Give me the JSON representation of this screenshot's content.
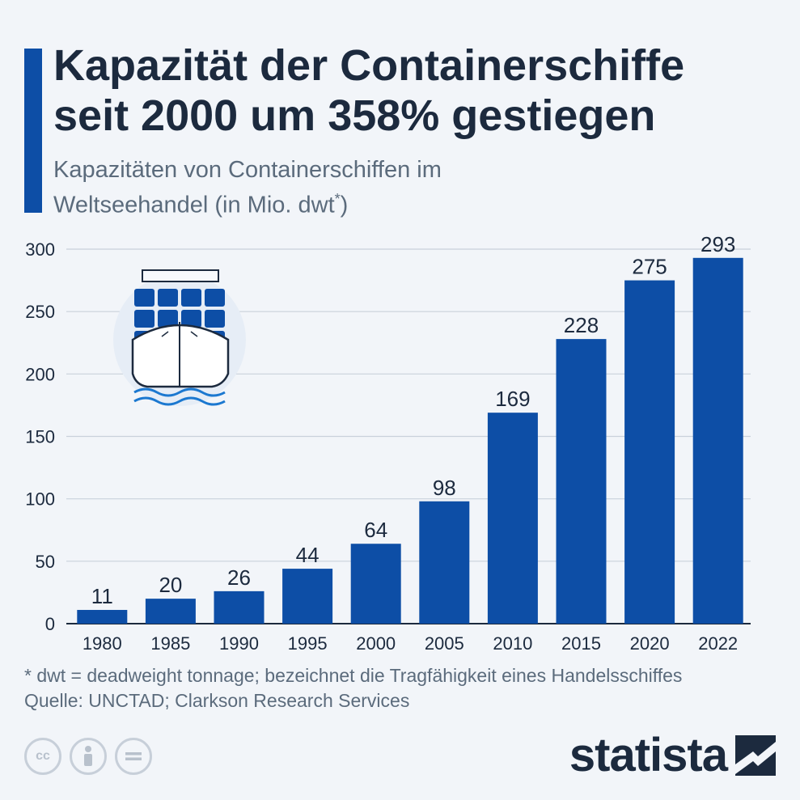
{
  "header": {
    "title_line1": "Kapazität der Containerschiffe",
    "title_line2": "seit 2000 um 358% gestiegen",
    "subtitle_line1": "Kapazitäten von Containerschiffen im",
    "subtitle_line2": "Weltseehandel (in Mio. dwt",
    "subtitle_sup": "*",
    "subtitle_end": ")"
  },
  "chart_data": {
    "type": "bar",
    "categories": [
      "1980",
      "1985",
      "1990",
      "1995",
      "2000",
      "2005",
      "2010",
      "2015",
      "2020",
      "2022"
    ],
    "values": [
      11,
      20,
      26,
      44,
      64,
      98,
      169,
      228,
      275,
      293
    ],
    "ylim": [
      0,
      300
    ],
    "yticks": [
      0,
      50,
      100,
      150,
      200,
      250,
      300
    ],
    "grid": true,
    "bar_color": "#0d4ea6"
  },
  "footer": {
    "note": "* dwt = deadweight tonnage; bezeichnet die Tragfähigkeit eines Handelsschiffes",
    "source": "Quelle: UNCTAD; Clarkson Research Services",
    "brand": "statista",
    "license_icons": [
      "cc-icon",
      "by-icon",
      "nd-icon"
    ]
  },
  "colors": {
    "accent": "#0d4ea6",
    "title": "#1c2a3e",
    "subtitle": "#5b6b7c",
    "background": "#f2f5f9"
  }
}
